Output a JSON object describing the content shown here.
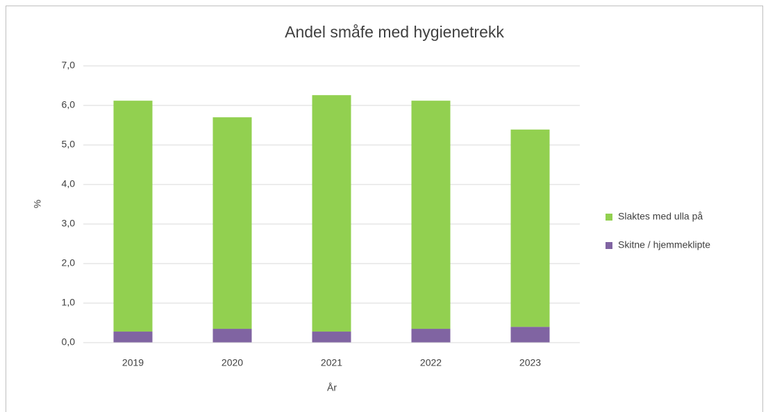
{
  "chart_data": {
    "type": "bar",
    "stacked": true,
    "title": "Andel småfe med hygienetrekk",
    "x_label": "År",
    "y_label": "%",
    "categories": [
      "2019",
      "2020",
      "2021",
      "2022",
      "2023"
    ],
    "series": [
      {
        "name": "Skitne / hjemmeklipte",
        "color": "#8064a2",
        "values": [
          0.28,
          0.35,
          0.28,
          0.35,
          0.4
        ]
      },
      {
        "name": "Slaktes med ulla på",
        "color": "#92d050",
        "values": [
          5.84,
          5.35,
          5.98,
          5.77,
          4.99
        ]
      }
    ],
    "ylim": [
      0,
      7
    ],
    "yticks": [
      {
        "value": 0,
        "label": "0,0"
      },
      {
        "value": 1,
        "label": "1,0"
      },
      {
        "value": 2,
        "label": "2,0"
      },
      {
        "value": 3,
        "label": "3,0"
      },
      {
        "value": 4,
        "label": "4,0"
      },
      {
        "value": 5,
        "label": "5,0"
      },
      {
        "value": 6,
        "label": "6,0"
      },
      {
        "value": 7,
        "label": "7,0"
      }
    ],
    "grid": true,
    "legend": "right"
  }
}
